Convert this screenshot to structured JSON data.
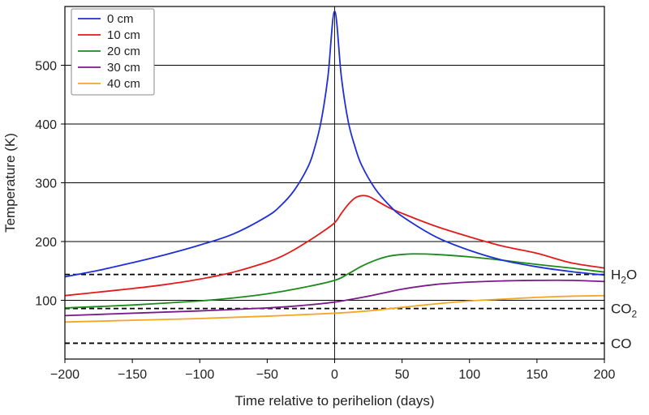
{
  "chart_data": {
    "type": "line",
    "xlabel": "Time relative to perihelion (days)",
    "ylabel": "Temperature (K)",
    "xlim": [
      -200,
      200
    ],
    "ylim": [
      0,
      600
    ],
    "xticks": [
      -200,
      -150,
      -100,
      -50,
      0,
      50,
      100,
      150,
      200
    ],
    "xtick_labels": [
      "−200",
      "−150",
      "−100",
      "−50",
      "0",
      "50",
      "100",
      "150",
      "200"
    ],
    "yticks": [
      100,
      200,
      300,
      400,
      500
    ],
    "ytick_labels": [
      "100",
      "200",
      "300",
      "400",
      "500"
    ],
    "grid": "horizontal",
    "vertical_reference_x": 0,
    "legend_position": "top-left",
    "series": [
      {
        "name": "0 cm",
        "color": "#1f2fd6",
        "x": [
          -200,
          -175,
          -150,
          -125,
          -100,
          -75,
          -50,
          -40,
          -30,
          -20,
          -15,
          -10,
          -5,
          0,
          5,
          10,
          15,
          20,
          30,
          40,
          50,
          75,
          100,
          125,
          150,
          175,
          200
        ],
        "y": [
          140,
          151,
          164,
          178,
          194,
          213,
          243,
          261,
          287,
          326,
          358,
          405,
          480,
          592,
          480,
          405,
          362,
          330,
          290,
          263,
          243,
          208,
          185,
          168,
          157,
          149,
          143
        ]
      },
      {
        "name": "10 cm",
        "color": "#e31a1c",
        "x": [
          -200,
          -175,
          -150,
          -125,
          -100,
          -75,
          -50,
          -40,
          -30,
          -20,
          -10,
          0,
          5,
          10,
          15,
          20,
          25,
          30,
          40,
          50,
          75,
          100,
          125,
          150,
          175,
          200
        ],
        "y": [
          108,
          114,
          120,
          127,
          136,
          148,
          165,
          174,
          186,
          200,
          215,
          232,
          248,
          263,
          274,
          278,
          277,
          271,
          258,
          248,
          226,
          208,
          192,
          180,
          164,
          155
        ]
      },
      {
        "name": "20 cm",
        "color": "#1a8a1a",
        "x": [
          -200,
          -150,
          -100,
          -75,
          -50,
          -25,
          0,
          10,
          20,
          30,
          40,
          50,
          60,
          75,
          100,
          125,
          150,
          175,
          200
        ],
        "y": [
          87,
          92,
          99,
          104,
          111,
          121,
          134,
          145,
          158,
          168,
          175,
          178,
          179,
          178,
          174,
          168,
          161,
          155,
          148
        ]
      },
      {
        "name": "30 cm",
        "color": "#7b1a8a",
        "x": [
          -200,
          -150,
          -100,
          -50,
          -25,
          0,
          25,
          50,
          75,
          100,
          125,
          150,
          175,
          200
        ],
        "y": [
          74,
          78,
          82,
          87,
          91,
          97,
          107,
          119,
          127,
          131,
          133,
          134,
          134,
          132
        ]
      },
      {
        "name": "40 cm",
        "color": "#f5a623",
        "x": [
          -200,
          -150,
          -100,
          -50,
          0,
          25,
          50,
          75,
          100,
          125,
          150,
          175,
          200
        ],
        "y": [
          63,
          66,
          69,
          73,
          78,
          82,
          88,
          94,
          99,
          102,
          105,
          107,
          108
        ]
      }
    ],
    "reference_lines": [
      {
        "label_main": "H",
        "label_sub": "2",
        "label_tail": "O",
        "y": 144
      },
      {
        "label_main": "CO",
        "label_sub": "2",
        "label_tail": "",
        "y": 86
      },
      {
        "label_main": "CO",
        "label_sub": "",
        "label_tail": "",
        "y": 27
      }
    ]
  }
}
